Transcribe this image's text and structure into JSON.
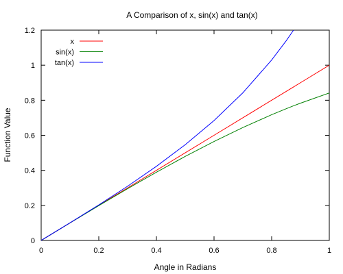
{
  "chart_data": {
    "type": "line",
    "title": "A Comparison of x, sin(x) and tan(x)",
    "xlabel": "Angle in Radians",
    "ylabel": "Function Value",
    "xlim": [
      0,
      1
    ],
    "ylim": [
      0,
      1.2
    ],
    "grid": false,
    "legend_position": "top-left",
    "x_ticks": [
      0,
      0.2,
      0.4,
      0.6,
      0.8,
      1
    ],
    "x_tick_labels": [
      "0",
      "0.2",
      "0.4",
      "0.6",
      "0.8",
      "1"
    ],
    "y_ticks": [
      0,
      0.2,
      0.4,
      0.6,
      0.8,
      1,
      1.2
    ],
    "y_tick_labels": [
      "0",
      "0.2",
      "0.4",
      "0.6",
      "0.8",
      "1",
      "1.2"
    ],
    "x": [
      0,
      0.1,
      0.2,
      0.3,
      0.4,
      0.5,
      0.6,
      0.7,
      0.8,
      0.85,
      0.876,
      0.9,
      1.0
    ],
    "series": [
      {
        "name": "x",
        "color": "#ff0000",
        "values": [
          0,
          0.1,
          0.2,
          0.3,
          0.4,
          0.5,
          0.6,
          0.7,
          0.8,
          0.85,
          0.876,
          0.9,
          1.0
        ]
      },
      {
        "name": "sin(x)",
        "color": "#008000",
        "values": [
          0,
          0.0998,
          0.1987,
          0.2955,
          0.3894,
          0.4794,
          0.5646,
          0.6442,
          0.7174,
          0.7513,
          0.7682,
          0.7833,
          0.8415
        ]
      },
      {
        "name": "tan(x)",
        "color": "#0000ff",
        "values": [
          0,
          0.1003,
          0.2027,
          0.3093,
          0.4228,
          0.5463,
          0.6841,
          0.8423,
          1.0296,
          1.1383,
          1.2,
          null,
          null
        ]
      }
    ]
  }
}
